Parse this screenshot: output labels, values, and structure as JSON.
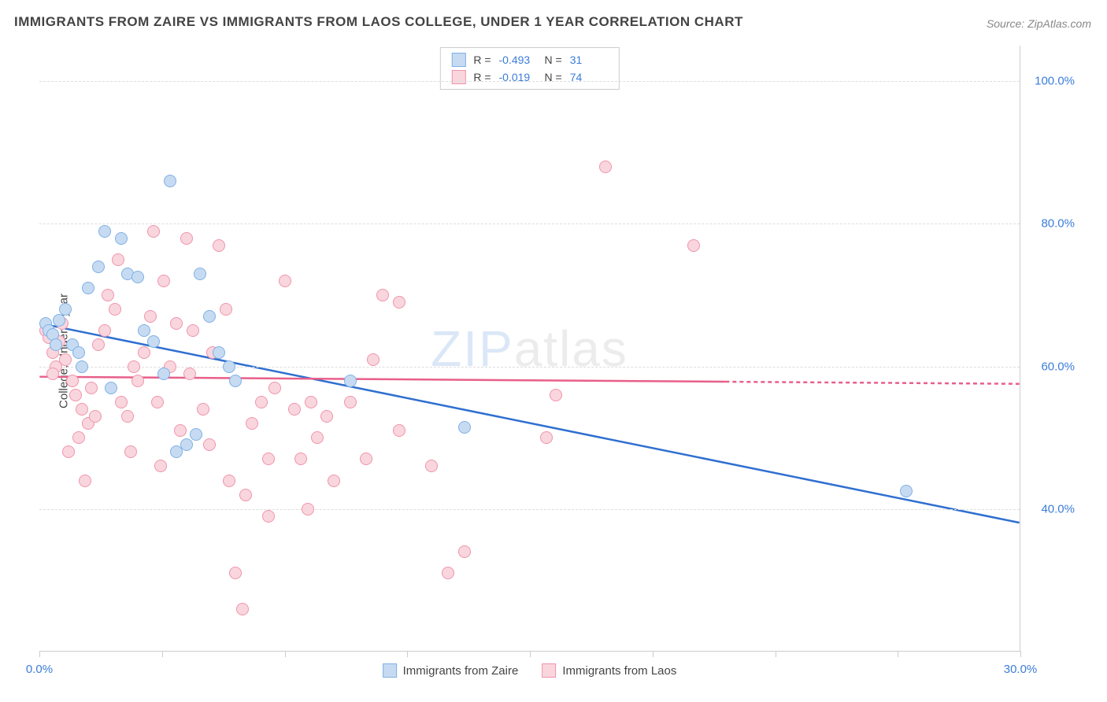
{
  "title": "IMMIGRANTS FROM ZAIRE VS IMMIGRANTS FROM LAOS COLLEGE, UNDER 1 YEAR CORRELATION CHART",
  "source": "Source: ZipAtlas.com",
  "y_axis_label": "College, Under 1 year",
  "watermark_bold": "ZIP",
  "watermark_light": "atlas",
  "chart": {
    "type": "scatter",
    "xlim": [
      0,
      30
    ],
    "ylim": [
      20,
      105
    ],
    "x_ticks": [
      0,
      3.75,
      7.5,
      11.25,
      15,
      18.75,
      22.5,
      26.25,
      30
    ],
    "x_tick_labels_shown": {
      "0": "0.0%",
      "30": "30.0%"
    },
    "y_gridlines": [
      40,
      60,
      80,
      100
    ],
    "y_tick_labels": {
      "40": "40.0%",
      "60": "60.0%",
      "80": "80.0%",
      "100": "100.0%"
    },
    "background_color": "#ffffff",
    "grid_color": "#dddddd",
    "tick_label_color": "#3b7dd8",
    "title_color": "#444444",
    "title_fontsize": 17,
    "label_fontsize": 15,
    "point_radius": 8,
    "series": [
      {
        "name": "Immigrants from Zaire",
        "fill": "#c6dbf2",
        "stroke": "#7fb0e5",
        "line_color": "#2f6fd0",
        "line_width": 2.5,
        "line_dash_after_x": 30,
        "R": "-0.493",
        "N": "31",
        "regression": {
          "x1": 0,
          "y1": 66,
          "x2": 30,
          "y2": 38
        },
        "points": [
          [
            0.2,
            66
          ],
          [
            0.3,
            65
          ],
          [
            0.4,
            64.5
          ],
          [
            0.6,
            66.5
          ],
          [
            0.8,
            68
          ],
          [
            1.0,
            63
          ],
          [
            1.2,
            62
          ],
          [
            1.5,
            71
          ],
          [
            1.8,
            74
          ],
          [
            2.0,
            79
          ],
          [
            2.5,
            78
          ],
          [
            2.7,
            73
          ],
          [
            3.0,
            72.5
          ],
          [
            3.2,
            65
          ],
          [
            3.5,
            63.5
          ],
          [
            3.8,
            59
          ],
          [
            4.0,
            86
          ],
          [
            4.2,
            48
          ],
          [
            4.5,
            49
          ],
          [
            4.8,
            50.5
          ],
          [
            5.2,
            67
          ],
          [
            5.5,
            62
          ],
          [
            5.8,
            60
          ],
          [
            6.0,
            58
          ],
          [
            4.9,
            73
          ],
          [
            1.3,
            60
          ],
          [
            2.2,
            57
          ],
          [
            0.5,
            63
          ],
          [
            9.5,
            58
          ],
          [
            13.0,
            51.5
          ],
          [
            26.5,
            42.5
          ]
        ]
      },
      {
        "name": "Immigrants from Laos",
        "fill": "#f9d6de",
        "stroke": "#f094ab",
        "line_color": "#e85f8a",
        "line_width": 2.5,
        "line_dash_after_x": 21,
        "R": "-0.019",
        "N": "74",
        "regression": {
          "x1": 0,
          "y1": 58.5,
          "x2": 30,
          "y2": 57.5
        },
        "points": [
          [
            0.2,
            65
          ],
          [
            0.3,
            64
          ],
          [
            0.4,
            62
          ],
          [
            0.5,
            60
          ],
          [
            0.6,
            63.5
          ],
          [
            0.7,
            66
          ],
          [
            0.8,
            61
          ],
          [
            1.0,
            58
          ],
          [
            1.1,
            56
          ],
          [
            1.2,
            50
          ],
          [
            1.3,
            54
          ],
          [
            1.5,
            52
          ],
          [
            1.6,
            57
          ],
          [
            1.8,
            63
          ],
          [
            2.0,
            65
          ],
          [
            2.1,
            70
          ],
          [
            2.3,
            68
          ],
          [
            2.5,
            55
          ],
          [
            2.7,
            53
          ],
          [
            2.8,
            48
          ],
          [
            3.0,
            58
          ],
          [
            3.2,
            62
          ],
          [
            3.4,
            67
          ],
          [
            3.5,
            79
          ],
          [
            3.8,
            72
          ],
          [
            4.0,
            60
          ],
          [
            4.2,
            66
          ],
          [
            4.5,
            78
          ],
          [
            4.7,
            65
          ],
          [
            5.0,
            54
          ],
          [
            5.2,
            49
          ],
          [
            5.5,
            77
          ],
          [
            5.7,
            68
          ],
          [
            5.8,
            44
          ],
          [
            6.0,
            31
          ],
          [
            6.2,
            26
          ],
          [
            6.5,
            52
          ],
          [
            6.8,
            55
          ],
          [
            7.0,
            47
          ],
          [
            7.2,
            57
          ],
          [
            7.5,
            72
          ],
          [
            7.8,
            54
          ],
          [
            8.0,
            47
          ],
          [
            8.2,
            40
          ],
          [
            8.5,
            50
          ],
          [
            8.8,
            53
          ],
          [
            9.0,
            44
          ],
          [
            9.5,
            55
          ],
          [
            10.0,
            47
          ],
          [
            10.2,
            61
          ],
          [
            10.5,
            70
          ],
          [
            11.0,
            51
          ],
          [
            11.0,
            69
          ],
          [
            7.0,
            39
          ],
          [
            8.3,
            55
          ],
          [
            6.3,
            42
          ],
          [
            5.3,
            62
          ],
          [
            4.3,
            51
          ],
          [
            3.6,
            55
          ],
          [
            2.9,
            60
          ],
          [
            12.5,
            31
          ],
          [
            12.0,
            46
          ],
          [
            1.4,
            44
          ],
          [
            0.9,
            48
          ],
          [
            2.4,
            75
          ],
          [
            15.5,
            50
          ],
          [
            15.8,
            56
          ],
          [
            17.3,
            88
          ],
          [
            13.0,
            34
          ],
          [
            3.7,
            46
          ],
          [
            20.0,
            77
          ],
          [
            4.6,
            59
          ],
          [
            1.7,
            53
          ],
          [
            0.4,
            59
          ]
        ]
      }
    ]
  },
  "legend": {
    "series1_label": "Immigrants from Zaire",
    "series2_label": "Immigrants from Laos"
  },
  "stats_labels": {
    "R": "R =",
    "N": "N ="
  }
}
